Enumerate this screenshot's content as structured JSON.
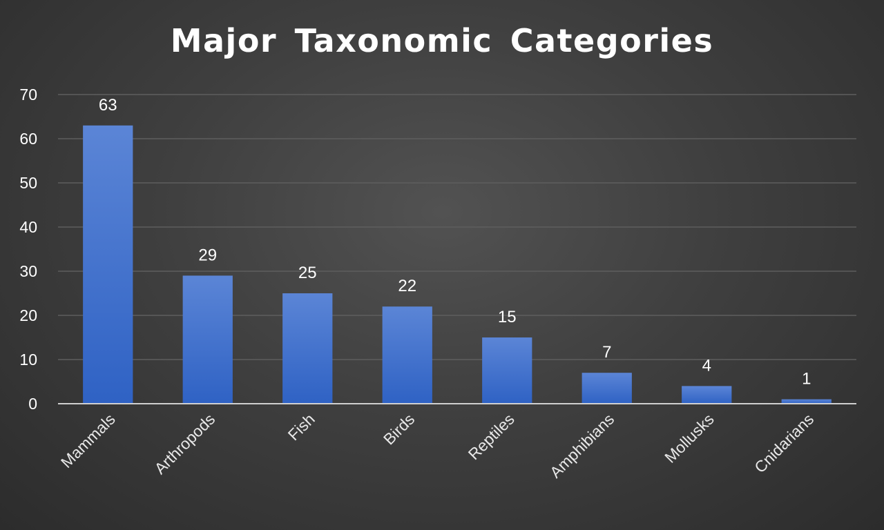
{
  "chart_data": {
    "type": "bar",
    "title": "Major Taxonomic Categories",
    "categories": [
      "Mammals",
      "Arthropods",
      "Fish",
      "Birds",
      "Reptiles",
      "Amphibians",
      "Mollusks",
      "Cnidarians"
    ],
    "values": [
      63,
      29,
      25,
      22,
      15,
      7,
      4,
      1
    ],
    "data_labels": [
      "63",
      "29",
      "25",
      "22",
      "15",
      "7",
      "4",
      "1"
    ],
    "xlabel": "",
    "ylabel": "",
    "ylim": [
      0,
      70
    ],
    "yticks": [
      0,
      10,
      20,
      30,
      40,
      50,
      60,
      70
    ],
    "grid": true,
    "legend": "none",
    "colors": {
      "bar_top": "#5b85d6",
      "bar_bottom": "#2f62c4",
      "grid": "#5e5e5e",
      "axis": "#d0d0d0",
      "text": "#ffffff"
    }
  }
}
